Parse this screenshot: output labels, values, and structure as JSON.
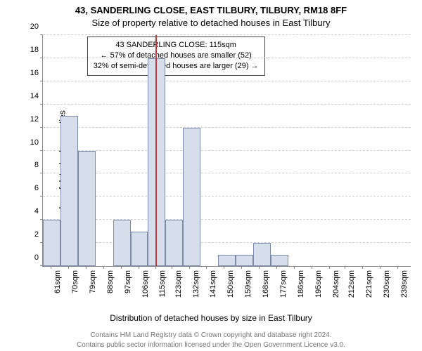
{
  "header": {
    "address": "43, SANDERLING CLOSE, EAST TILBURY, TILBURY, RM18 8FF",
    "subtitle": "Size of property relative to detached houses in East Tilbury"
  },
  "chart": {
    "type": "histogram",
    "ylabel": "Number of detached properties",
    "xlabel": "Distribution of detached houses by size in East Tilbury",
    "ylim": [
      0,
      20
    ],
    "ytick_step": 2,
    "bar_fill": "#d6deec",
    "bar_border": "#7a8aa8",
    "highlight_color": "#c23a3a",
    "grid_color": "#d0d0d0",
    "background_color": "#ffffff",
    "x_bin_width": 9,
    "x_min": 57,
    "x_max": 246,
    "xticks": [
      61,
      70,
      79,
      88,
      97,
      106,
      115,
      123,
      132,
      141,
      150,
      159,
      168,
      177,
      186,
      195,
      204,
      212,
      221,
      230,
      239
    ],
    "xtick_labels": [
      "61sqm",
      "70sqm",
      "79sqm",
      "88sqm",
      "97sqm",
      "106sqm",
      "115sqm",
      "123sqm",
      "132sqm",
      "141sqm",
      "150sqm",
      "159sqm",
      "168sqm",
      "177sqm",
      "186sqm",
      "195sqm",
      "204sqm",
      "212sqm",
      "221sqm",
      "230sqm",
      "239sqm"
    ],
    "bars": [
      {
        "x_start": 57,
        "count": 4
      },
      {
        "x_start": 66,
        "count": 13
      },
      {
        "x_start": 75,
        "count": 10
      },
      {
        "x_start": 84,
        "count": 0
      },
      {
        "x_start": 93,
        "count": 4
      },
      {
        "x_start": 102,
        "count": 3
      },
      {
        "x_start": 111,
        "count": 18
      },
      {
        "x_start": 120,
        "count": 4
      },
      {
        "x_start": 129,
        "count": 12
      },
      {
        "x_start": 138,
        "count": 0
      },
      {
        "x_start": 147,
        "count": 1
      },
      {
        "x_start": 156,
        "count": 1
      },
      {
        "x_start": 165,
        "count": 2
      },
      {
        "x_start": 174,
        "count": 1
      },
      {
        "x_start": 183,
        "count": 0
      },
      {
        "x_start": 192,
        "count": 0
      },
      {
        "x_start": 201,
        "count": 0
      },
      {
        "x_start": 210,
        "count": 0
      },
      {
        "x_start": 219,
        "count": 0
      },
      {
        "x_start": 228,
        "count": 0
      },
      {
        "x_start": 237,
        "count": 0
      }
    ],
    "highlight_x": 115,
    "legend": {
      "line1": "43 SANDERLING CLOSE: 115sqm",
      "line2": "← 57% of detached houses are smaller (52)",
      "line3": "32% of semi-detached houses are larger (29) →"
    }
  },
  "footer": {
    "line1": "Contains HM Land Registry data © Crown copyright and database right 2024.",
    "line2": "Contains public sector information licensed under the Open Government Licence v3.0."
  }
}
